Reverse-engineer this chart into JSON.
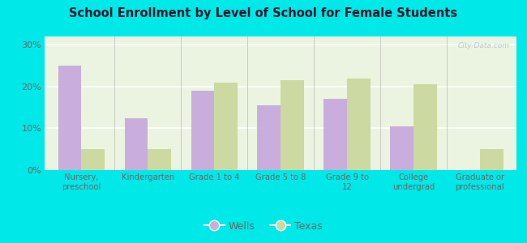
{
  "title": "School Enrollment by Level of School for Female Students",
  "categories": [
    "Nursery,\npreschool",
    "Kindergarten",
    "Grade 1 to 4",
    "Grade 5 to 8",
    "Grade 9 to\n12",
    "College\nundergrad",
    "Graduate or\nprofessional"
  ],
  "wells": [
    25.0,
    12.5,
    19.0,
    15.5,
    17.0,
    10.5,
    0.0
  ],
  "texas": [
    5.0,
    5.0,
    21.0,
    21.5,
    22.0,
    20.5,
    5.0
  ],
  "wells_color": "#c9aedd",
  "texas_color": "#ccd9a0",
  "background_outer": "#00e8e8",
  "background_inner_color": "#eaf4e0",
  "yticks": [
    0,
    10,
    20,
    30
  ],
  "ylim": [
    0,
    32
  ],
  "bar_width": 0.35,
  "legend_labels": [
    "Wells",
    "Texas"
  ],
  "watermark": "City-Data.com",
  "title_color": "#1a1a2e",
  "tick_color": "#666666"
}
